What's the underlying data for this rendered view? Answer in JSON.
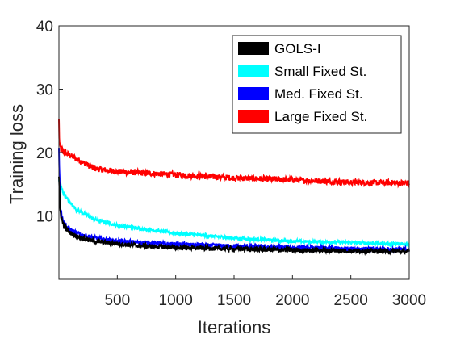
{
  "chart_data": {
    "type": "line",
    "title": "",
    "xlabel": "Iterations",
    "ylabel": "Training loss",
    "xlim": [
      0,
      3000
    ],
    "ylim": [
      0,
      40
    ],
    "xticks": [
      500,
      1000,
      1500,
      2000,
      2500,
      3000
    ],
    "yticks": [
      10,
      20,
      30,
      40
    ],
    "xtick_labels": [
      "500",
      "1000",
      "1500",
      "2000",
      "2500",
      "3000"
    ],
    "ytick_labels": [
      "10",
      "20",
      "30",
      "40"
    ],
    "grid": false,
    "legend_position": "top-right",
    "series": [
      {
        "name": "GOLS-I",
        "color": "#000000",
        "x": [
          0,
          10,
          30,
          60,
          100,
          150,
          200,
          300,
          400,
          500,
          700,
          1000,
          1500,
          2000,
          2500,
          3000
        ],
        "y": [
          16.0,
          11.0,
          9.0,
          8.0,
          7.3,
          6.8,
          6.5,
          6.0,
          5.8,
          5.6,
          5.3,
          5.0,
          4.8,
          4.6,
          4.5,
          4.4
        ]
      },
      {
        "name": "Small Fixed St.",
        "color": "#00ffff",
        "x": [
          0,
          10,
          30,
          60,
          100,
          150,
          200,
          300,
          400,
          500,
          700,
          1000,
          1500,
          2000,
          2500,
          3000
        ],
        "y": [
          15.5,
          15.0,
          14.0,
          13.0,
          12.0,
          11.0,
          10.5,
          9.5,
          9.0,
          8.5,
          8.0,
          7.3,
          6.5,
          6.0,
          5.8,
          5.5
        ]
      },
      {
        "name": "Med. Fixed St.",
        "color": "#0000ff",
        "x": [
          0,
          10,
          30,
          60,
          100,
          150,
          200,
          300,
          400,
          500,
          700,
          1000,
          1500,
          2000,
          2500,
          3000
        ],
        "y": [
          21.0,
          12.0,
          9.5,
          8.4,
          7.8,
          7.3,
          7.0,
          6.5,
          6.2,
          6.0,
          5.8,
          5.5,
          5.2,
          5.0,
          4.8,
          4.7
        ]
      },
      {
        "name": "Large Fixed St.",
        "color": "#ff0000",
        "x": [
          0,
          5,
          20,
          50,
          100,
          200,
          300,
          500,
          700,
          1000,
          1500,
          2000,
          2500,
          3000
        ],
        "y": [
          25.0,
          21.0,
          20.5,
          20.0,
          19.5,
          18.5,
          17.5,
          17.0,
          16.8,
          16.5,
          16.0,
          15.7,
          15.3,
          15.2
        ]
      }
    ]
  }
}
